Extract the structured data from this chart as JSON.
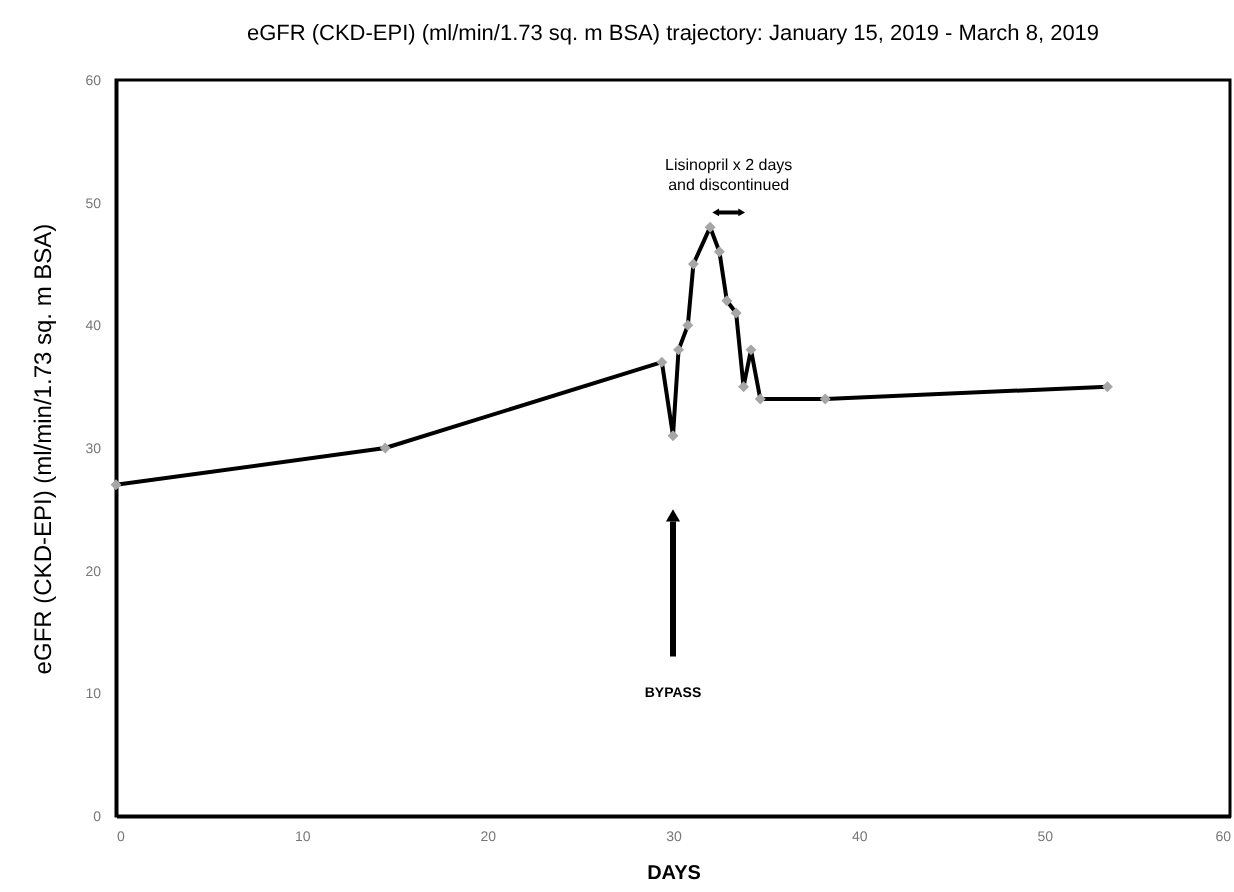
{
  "chart_data": {
    "type": "line",
    "title": "eGFR (CKD-EPI) (ml/min/1.73 sq. m BSA) trajectory: January 15, 2019 - March 8, 2019",
    "xlabel": "DAYS",
    "ylabel": "eGFR (CKD-EPI) (ml/min/1.73 sq. m BSA)",
    "x": [
      0,
      14.5,
      29.4,
      30,
      30.3,
      30.8,
      31.1,
      32,
      32.5,
      32.9,
      33.4,
      33.8,
      34.2,
      34.7,
      38.2,
      53.4
    ],
    "series": [
      {
        "color": "#000000",
        "values": [
          27,
          30,
          37,
          31,
          38,
          40,
          45,
          48,
          46,
          42,
          41,
          35,
          38,
          34,
          34,
          35
        ]
      }
    ],
    "xlim": [
      0,
      60
    ],
    "xticks": [
      0,
      10,
      20,
      30,
      40,
      50,
      60
    ],
    "ylim": [
      0,
      60
    ],
    "yticks": [
      0,
      10,
      20,
      30,
      40,
      50,
      60
    ],
    "grid": false,
    "marker": "diamond",
    "line_style": "solid",
    "annotations": [
      "BYPASS",
      "Lisinopril x 2 days\nand discontinued"
    ]
  }
}
